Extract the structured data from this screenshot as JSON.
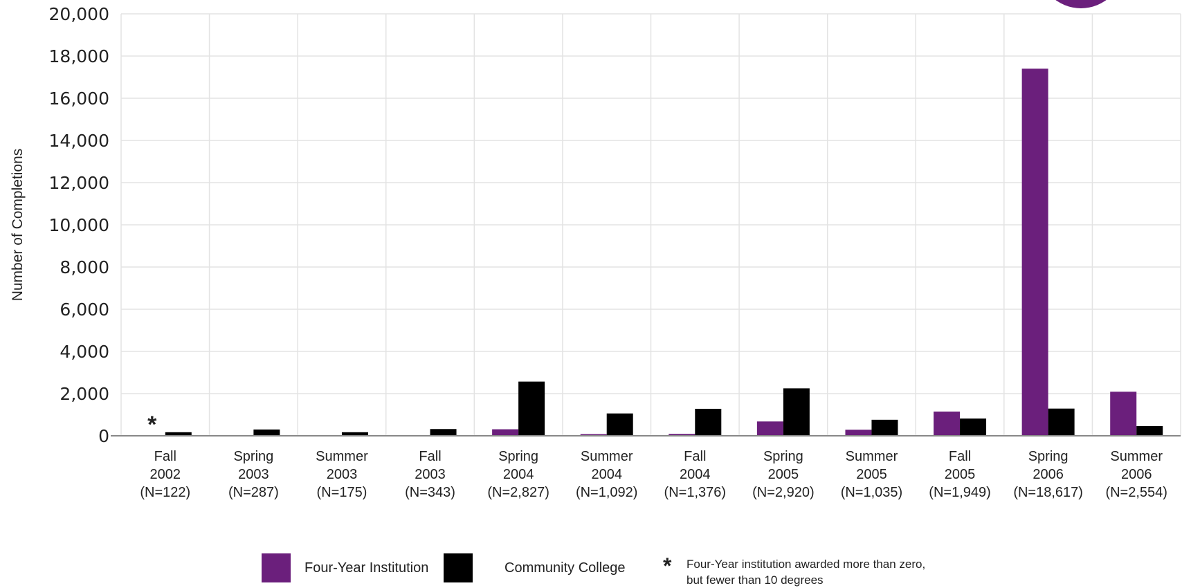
{
  "chart_data": {
    "type": "bar",
    "title": "",
    "xlabel": "",
    "ylabel": "Number of Completions",
    "ylim": [
      0,
      20000
    ],
    "y_ticks": [
      "0",
      "2,000",
      "4,000",
      "6,000",
      "8,000",
      "10,000",
      "12,000",
      "14,000",
      "16,000",
      "18,000",
      "20,000"
    ],
    "grid": true,
    "categories": [
      {
        "term": "Fall",
        "year": "2002",
        "n": "(N=122)"
      },
      {
        "term": "Spring",
        "year": "2003",
        "n": "(N=287)"
      },
      {
        "term": "Summer",
        "year": "2003",
        "n": "(N=175)"
      },
      {
        "term": "Fall",
        "year": "2003",
        "n": "(N=343)"
      },
      {
        "term": "Spring",
        "year": "2004",
        "n": "(N=2,827)"
      },
      {
        "term": "Summer",
        "year": "2004",
        "n": "(N=1,092)"
      },
      {
        "term": "Fall",
        "year": "2004",
        "n": "(N=1,376)"
      },
      {
        "term": "Spring",
        "year": "2005",
        "n": "(N=2,920)"
      },
      {
        "term": "Summer",
        "year": "2005",
        "n": "(N=1,035)"
      },
      {
        "term": "Fall",
        "year": "2005",
        "n": "(N=1,949)"
      },
      {
        "term": "Spring",
        "year": "2006",
        "n": "(N=18,617)"
      },
      {
        "term": "Summer",
        "year": "2006",
        "n": "(N=2,554)"
      }
    ],
    "series": [
      {
        "name": "Four-Year Institution",
        "color": "#6b1f7c",
        "values": [
          0,
          0,
          0,
          0,
          310,
          80,
          90,
          680,
          290,
          1150,
          17400,
          2090
        ]
      },
      {
        "name": "Community College",
        "color": "#000000",
        "values": [
          170,
          300,
          170,
          320,
          2570,
          1060,
          1280,
          2250,
          760,
          820,
          1290,
          460
        ]
      }
    ],
    "asterisk_marks": [
      {
        "category_index": 0,
        "symbol": "*"
      }
    ],
    "legend_position": "bottom",
    "note": {
      "symbol": "*",
      "line1": "Four-Year institution awarded more than zero,",
      "line2": "but fewer than 10 degrees"
    },
    "colors": {
      "accent_circle": "#6b1f7c",
      "grid": "#e3e3e3",
      "axis": "#888888"
    }
  }
}
